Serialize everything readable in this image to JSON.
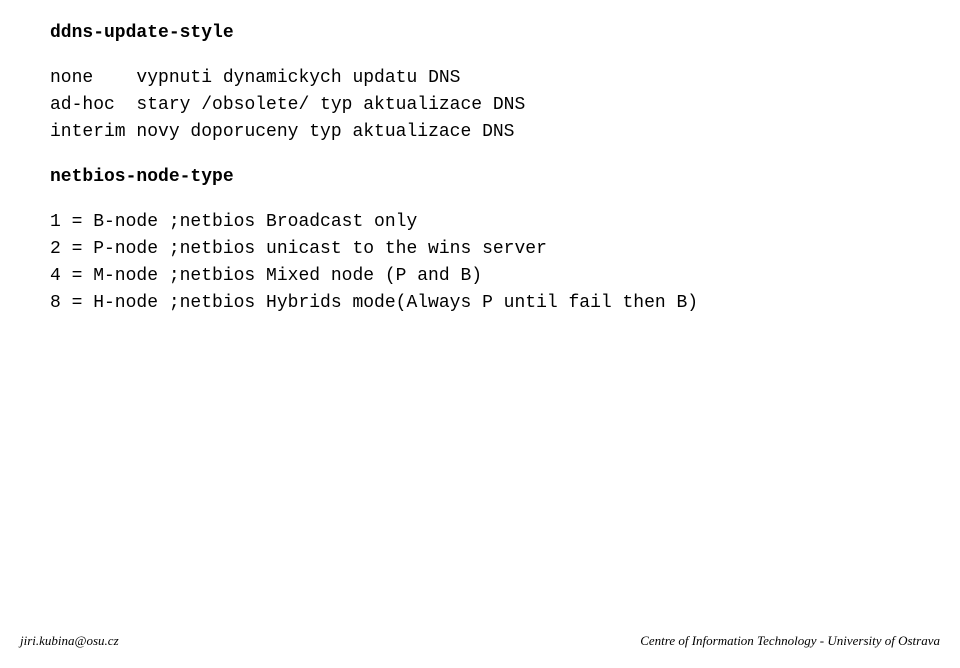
{
  "section1": {
    "heading": "ddns-update-style",
    "rows": [
      {
        "key": "none",
        "desc": "vypnuti dynamickych updatu DNS"
      },
      {
        "key": "ad-hoc",
        "desc": "stary /obsolete/ typ aktualizace DNS"
      },
      {
        "key": "interim",
        "desc": "novy doporuceny typ aktualizace DNS"
      }
    ]
  },
  "section2": {
    "heading": "netbios-node-type",
    "rows": [
      "1 = B-node ;netbios Broadcast only",
      "2 = P-node ;netbios unicast to the wins server",
      "4 = M-node ;netbios Mixed node (P and B)",
      "8 = H-node ;netbios Hybrids mode(Always P until fail then B)"
    ]
  },
  "footer": {
    "left": "jiri.kubina@osu.cz",
    "right": "Centre of Information Technology - University of Ostrava"
  },
  "layout": {
    "keycol_width": 8
  }
}
